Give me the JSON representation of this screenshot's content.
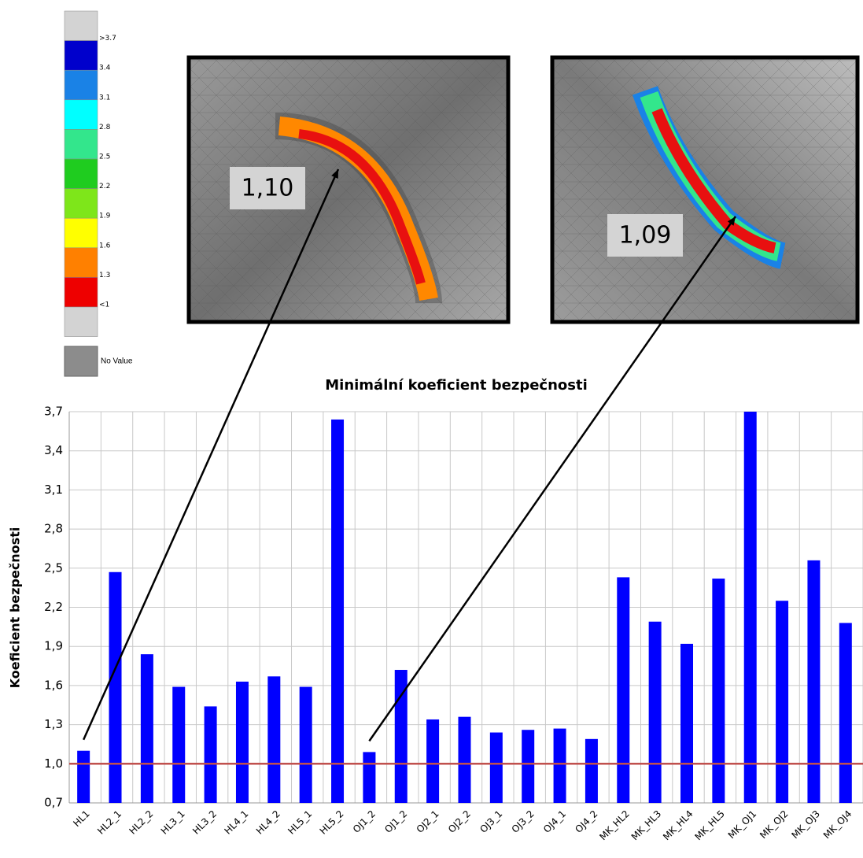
{
  "chart_data": {
    "type": "bar",
    "title": "Minimální koeficient bezpečnosti",
    "y_label": "Koeficient bezpečnosti",
    "categories": [
      "HL1",
      "HL2_1",
      "HL2_2",
      "HL3_1",
      "HL3_2",
      "HL4_1",
      "HL4_2",
      "HL5_1",
      "HL5_2",
      "OJ1_2",
      "OJ1_2",
      "OJ2_1",
      "OJ2_2",
      "OJ3_1",
      "OJ3_2",
      "OJ4_1",
      "OJ4_2",
      "MK_HL2",
      "MK_HL3",
      "MK_HL4",
      "MK_HL5",
      "MK_OJ1",
      "MK_OJ2",
      "MK_OJ3",
      "MK_OJ4"
    ],
    "values": [
      1.1,
      2.47,
      1.84,
      1.59,
      1.44,
      1.63,
      1.67,
      1.59,
      3.64,
      1.09,
      1.72,
      1.34,
      1.36,
      1.24,
      1.26,
      1.27,
      1.19,
      2.43,
      2.09,
      1.92,
      2.42,
      3.7,
      2.25,
      2.56,
      2.08
    ],
    "color": "#0000ff",
    "ylim": [
      0.7,
      3.7
    ],
    "yticks": [
      {
        "value": 0.7,
        "label": "0,7"
      },
      {
        "value": 1.0,
        "label": "1,0"
      },
      {
        "value": 1.3,
        "label": "1,3"
      },
      {
        "value": 1.6,
        "label": "1,6"
      },
      {
        "value": 1.9,
        "label": "1,9"
      },
      {
        "value": 2.2,
        "label": "2,2"
      },
      {
        "value": 2.5,
        "label": "2,5"
      },
      {
        "value": 2.8,
        "label": "2,8"
      },
      {
        "value": 3.1,
        "label": "3,1"
      },
      {
        "value": 3.4,
        "label": "3,4"
      },
      {
        "value": 3.7,
        "label": "3,7"
      }
    ],
    "grid": true,
    "reference_line": {
      "value": 1.0,
      "color": "#c0504d"
    },
    "annotations": [
      {
        "label": "1,10",
        "point": 0
      },
      {
        "label": "1,09",
        "point": 9
      }
    ],
    "color_scale": {
      "colors": [
        "#d3d3d3",
        "#0000cc",
        "#1a82e6",
        "#00ffff",
        "#33e68c",
        "#1fcc1f",
        "#7ee61a",
        "#ffff00",
        "#ff8000",
        "#ee0000",
        "#d3d3d3"
      ],
      "labels": [
        ">3.7",
        "3.4",
        "3.1",
        "2.8",
        "2.5",
        "2.2",
        "1.9",
        "1.6",
        "1.3",
        "<1"
      ],
      "no_value": {
        "label": "No Value",
        "color": "#8c8c8c"
      }
    }
  }
}
